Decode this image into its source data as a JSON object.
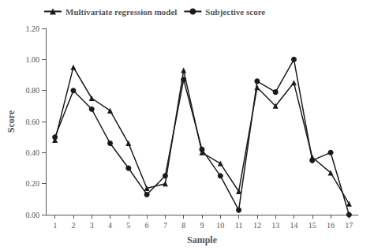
{
  "chart_data": {
    "type": "line",
    "x": [
      1,
      2,
      3,
      4,
      5,
      6,
      7,
      8,
      9,
      10,
      11,
      12,
      13,
      14,
      15,
      16,
      17
    ],
    "series": [
      {
        "name": "Multivariate regression model",
        "color": "#1a1a1a",
        "marker": "triangle",
        "values": [
          0.48,
          0.95,
          0.75,
          0.67,
          0.46,
          0.17,
          0.2,
          0.93,
          0.4,
          0.33,
          0.15,
          0.82,
          0.7,
          0.85,
          0.37,
          0.27,
          0.07
        ]
      },
      {
        "name": "Subjective score",
        "color": "#1a1a1a",
        "marker": "circle",
        "values": [
          0.5,
          0.8,
          0.68,
          0.46,
          0.3,
          0.13,
          0.25,
          0.87,
          0.42,
          0.25,
          0.03,
          0.86,
          0.79,
          1.0,
          0.35,
          0.4,
          0.0
        ]
      }
    ],
    "xlabel": "Sample",
    "ylabel": "Score",
    "xlim": [
      0.5,
      17.5
    ],
    "xticks": [
      1,
      2,
      3,
      4,
      5,
      6,
      7,
      8,
      9,
      10,
      11,
      12,
      13,
      14,
      15,
      16,
      17
    ],
    "ylim": [
      0,
      1.2
    ],
    "yticks": [
      {
        "value": 0,
        "label": "0.00"
      },
      {
        "value": 0.2,
        "label": "0.20"
      },
      {
        "value": 0.4,
        "label": "0.40"
      },
      {
        "value": 0.6,
        "label": "0.60"
      },
      {
        "value": 0.8,
        "label": "0.80"
      },
      {
        "value": 1.0,
        "label": "1.00"
      },
      {
        "value": 1.2,
        "label": "1.20"
      }
    ],
    "legend": "upper left",
    "grid": false
  }
}
